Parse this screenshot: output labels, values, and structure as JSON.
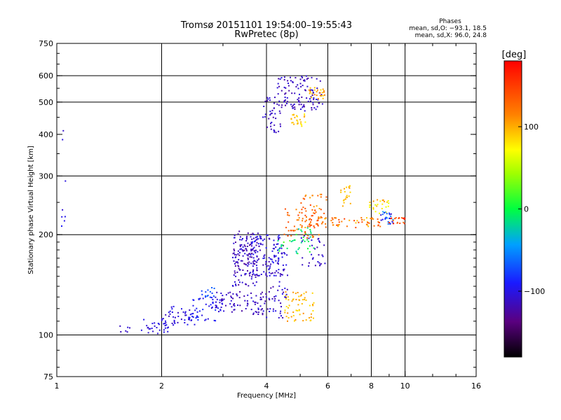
{
  "title_line1": "Tromsø 20151101 19:54:00–19:55:43",
  "title_line2": "RwPretec (8p)",
  "stats": {
    "heading": "Phases",
    "line_o": "mean, sd,O: −93.1, 18.5",
    "line_x": "mean, sd,X:  96.0, 24.8"
  },
  "colorbar": {
    "unit_label": "[deg]",
    "ticks": [
      {
        "value": 100,
        "label": "100"
      },
      {
        "value": 0,
        "label": "0"
      },
      {
        "value": -100,
        "label": "−100"
      }
    ],
    "range": [
      -180,
      180
    ]
  },
  "chart_data": {
    "type": "scatter",
    "xlabel": "Frequency [MHz]",
    "ylabel": "Stationary phase Virtual Height [km]",
    "xscale": "log",
    "yscale": "log",
    "xlim": [
      1,
      16
    ],
    "ylim": [
      75,
      750
    ],
    "xticks": [
      {
        "value": 1,
        "label": "1"
      },
      {
        "value": 2,
        "label": "2"
      },
      {
        "value": 4,
        "label": "4"
      },
      {
        "value": 6,
        "label": "6"
      },
      {
        "value": 8,
        "label": "8"
      },
      {
        "value": 10,
        "label": "10"
      },
      {
        "value": 16,
        "label": "16"
      }
    ],
    "yticks": [
      {
        "value": 75,
        "label": "75"
      },
      {
        "value": 100,
        "label": "100"
      },
      {
        "value": 200,
        "label": "200"
      },
      {
        "value": 300,
        "label": "300"
      },
      {
        "value": 400,
        "label": "400"
      },
      {
        "value": 500,
        "label": "500"
      },
      {
        "value": 600,
        "label": "600"
      },
      {
        "value": 750,
        "label": "750"
      }
    ],
    "grid_x": [
      2,
      4,
      6,
      8,
      10
    ],
    "grid_y": [
      100,
      200,
      300,
      500,
      600
    ],
    "color_scale": "rainbow phase (deg)",
    "clusters": [
      {
        "x": [
          1.5,
          1.62
        ],
        "y": [
          101,
          107
        ],
        "phase": [
          -95,
          -120
        ],
        "n": 6
      },
      {
        "x": [
          1.75,
          2.1
        ],
        "y": [
          100,
          112
        ],
        "phase": [
          -95,
          -110
        ],
        "n": 30
      },
      {
        "x": [
          2.0,
          2.5
        ],
        "y": [
          107,
          122
        ],
        "phase": [
          -90,
          -115
        ],
        "n": 40
      },
      {
        "x": [
          2.4,
          3.0
        ],
        "y": [
          110,
          132
        ],
        "phase": [
          -80,
          -110
        ],
        "n": 55
      },
      {
        "x": [
          2.6,
          2.85
        ],
        "y": [
          130,
          140
        ],
        "phase": [
          -60,
          -80
        ],
        "n": 12
      },
      {
        "x": [
          2.85,
          4.0
        ],
        "y": [
          115,
          135
        ],
        "phase": [
          -100,
          -125
        ],
        "n": 80
      },
      {
        "x": [
          3.2,
          3.8
        ],
        "y": [
          140,
          205
        ],
        "phase": [
          -100,
          -130
        ],
        "n": 150
      },
      {
        "x": [
          3.6,
          4.5
        ],
        "y": [
          150,
          200
        ],
        "phase": [
          -90,
          -120
        ],
        "n": 110
      },
      {
        "x": [
          4.0,
          4.6
        ],
        "y": [
          112,
          180
        ],
        "phase": [
          -95,
          -125
        ],
        "n": 60
      },
      {
        "x": [
          4.5,
          5.5
        ],
        "y": [
          110,
          135
        ],
        "phase": [
          80,
          115
        ],
        "n": 60
      },
      {
        "x": [
          4.3,
          5.5
        ],
        "y": [
          175,
          210
        ],
        "phase": [
          -30,
          20
        ],
        "n": 40
      },
      {
        "x": [
          4.5,
          5.8
        ],
        "y": [
          195,
          240
        ],
        "phase": [
          110,
          150
        ],
        "n": 60
      },
      {
        "x": [
          5.0,
          6.0
        ],
        "y": [
          210,
          265
        ],
        "phase": [
          95,
          145
        ],
        "n": 40
      },
      {
        "x": [
          5.0,
          5.9
        ],
        "y": [
          160,
          200
        ],
        "phase": [
          -100,
          -120
        ],
        "n": 30
      },
      {
        "x": [
          5.6,
          8.5
        ],
        "y": [
          210,
          225
        ],
        "phase": [
          90,
          150
        ],
        "n": 55
      },
      {
        "x": [
          6.5,
          7.0
        ],
        "y": [
          240,
          285
        ],
        "phase": [
          85,
          110
        ],
        "n": 20
      },
      {
        "x": [
          7.8,
          9.0
        ],
        "y": [
          230,
          255
        ],
        "phase": [
          60,
          110
        ],
        "n": 25
      },
      {
        "x": [
          8.5,
          9.3
        ],
        "y": [
          215,
          235
        ],
        "phase": [
          -40,
          -110
        ],
        "n": 25
      },
      {
        "x": [
          9.0,
          10.0
        ],
        "y": [
          215,
          225
        ],
        "phase": [
          120,
          175
        ],
        "n": 20
      },
      {
        "x": [
          3.9,
          4.4
        ],
        "y": [
          405,
          520
        ],
        "phase": [
          -100,
          -125
        ],
        "n": 40
      },
      {
        "x": [
          4.3,
          5.8
        ],
        "y": [
          470,
          600
        ],
        "phase": [
          -100,
          -125
        ],
        "n": 110
      },
      {
        "x": [
          4.7,
          5.2
        ],
        "y": [
          420,
          460
        ],
        "phase": [
          70,
          105
        ],
        "n": 25
      },
      {
        "x": [
          5.3,
          5.9
        ],
        "y": [
          510,
          560
        ],
        "phase": [
          80,
          120
        ],
        "n": 25
      },
      {
        "x": [
          1.03,
          1.06
        ],
        "y": [
          205,
          440
        ],
        "phase": [
          -90,
          -110
        ],
        "n": 8
      }
    ]
  }
}
